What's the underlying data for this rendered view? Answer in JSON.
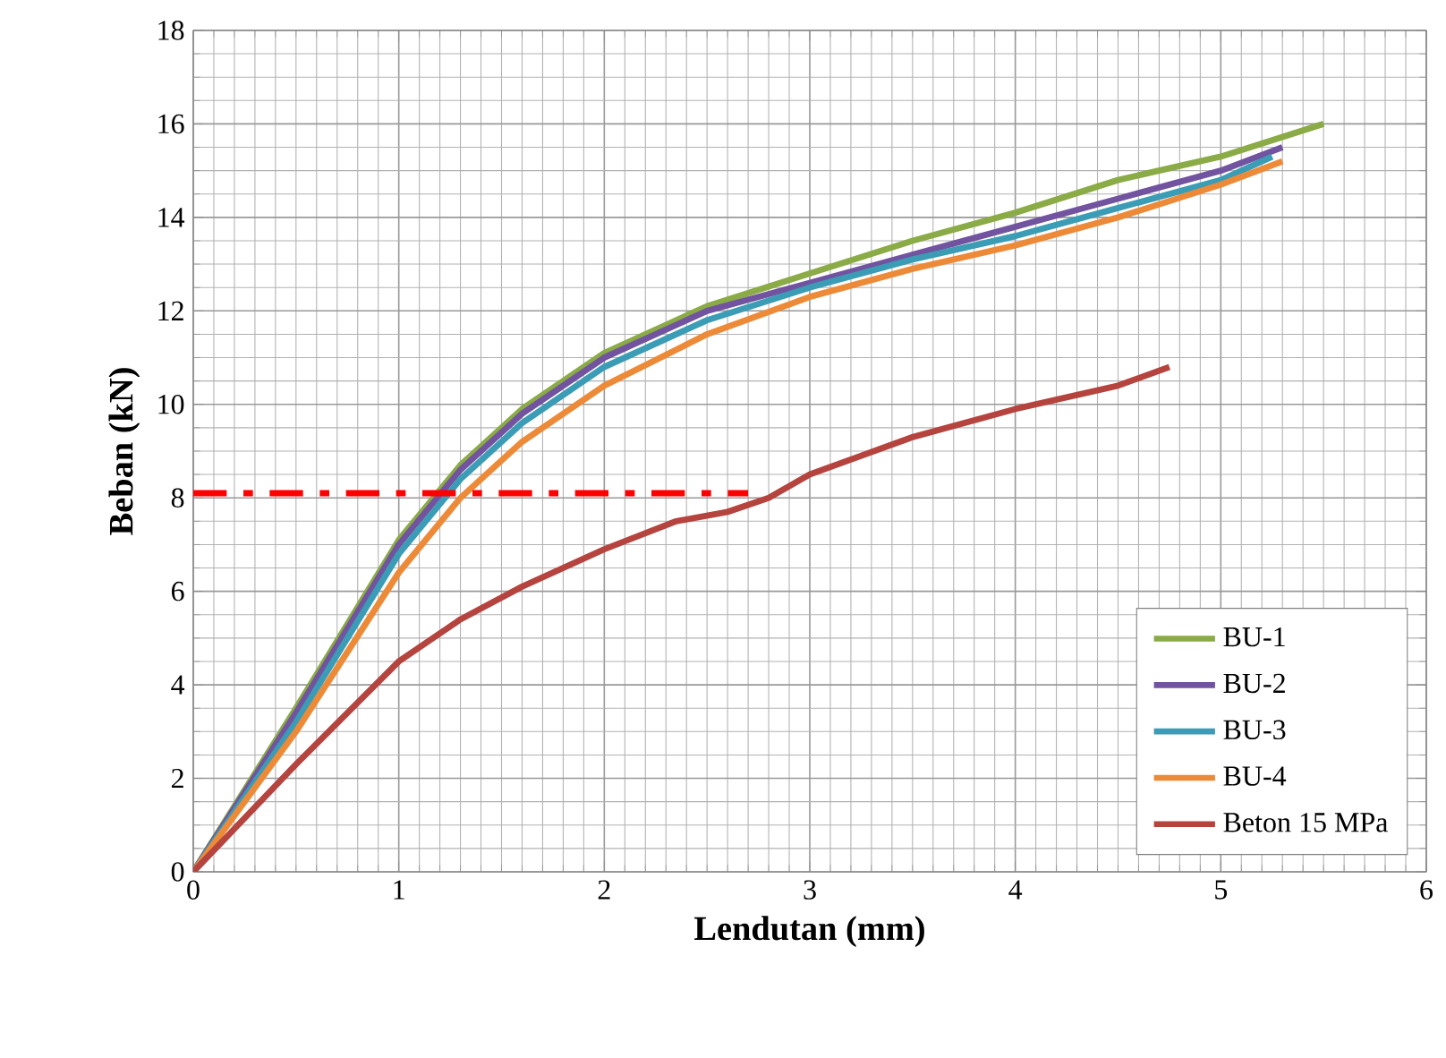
{
  "chart_data": {
    "type": "line",
    "xlabel": "Lendutan (mm)",
    "ylabel": "Beban (kN)",
    "xlim": [
      0,
      6
    ],
    "ylim": [
      0,
      18
    ],
    "xticks": [
      0,
      1,
      2,
      3,
      4,
      5,
      6
    ],
    "yticks": [
      0,
      2,
      4,
      6,
      8,
      10,
      12,
      14,
      16,
      18
    ],
    "grid": true,
    "legend": "bottom right",
    "marker": "none",
    "line_style": "solid",
    "series": [
      {
        "name": "BU-1",
        "color": "#8aab45",
        "x": [
          0,
          0.5,
          1,
          1.3,
          1.6,
          2,
          2.5,
          3,
          3.5,
          4,
          4.5,
          5,
          5.5
        ],
        "values": [
          0,
          3.5,
          7.1,
          8.7,
          9.9,
          11.1,
          12.1,
          12.8,
          13.5,
          14.1,
          14.8,
          15.3,
          16.0
        ]
      },
      {
        "name": "BU-2",
        "color": "#7153a0",
        "x": [
          0,
          0.5,
          1,
          1.3,
          1.6,
          2,
          2.5,
          3,
          3.5,
          4,
          4.5,
          5,
          5.3
        ],
        "values": [
          0,
          3.4,
          7.0,
          8.6,
          9.8,
          11.0,
          12.0,
          12.6,
          13.2,
          13.8,
          14.4,
          15.0,
          15.5
        ]
      },
      {
        "name": "BU-3",
        "color": "#3b9cb5",
        "x": [
          0,
          0.5,
          1,
          1.3,
          1.6,
          2,
          2.5,
          3,
          3.5,
          4,
          4.5,
          5,
          5.25
        ],
        "values": [
          0,
          3.2,
          6.8,
          8.4,
          9.6,
          10.8,
          11.8,
          12.5,
          13.1,
          13.6,
          14.2,
          14.8,
          15.3
        ]
      },
      {
        "name": "BU-4",
        "color": "#ed8a38",
        "x": [
          0,
          0.5,
          1,
          1.3,
          1.6,
          2,
          2.5,
          3,
          3.5,
          4,
          4.5,
          5,
          5.3
        ],
        "values": [
          0,
          3.0,
          6.4,
          8.0,
          9.2,
          10.4,
          11.5,
          12.3,
          12.9,
          13.4,
          14.0,
          14.7,
          15.2
        ]
      },
      {
        "name": "Beton 15 MPa",
        "color": "#b5443f",
        "x": [
          0,
          0.5,
          1,
          1.3,
          1.6,
          2,
          2.35,
          2.6,
          2.8,
          3,
          3.5,
          4,
          4.5,
          4.75
        ],
        "values": [
          0,
          2.3,
          4.5,
          5.4,
          6.1,
          6.9,
          7.5,
          7.7,
          8.0,
          8.5,
          9.3,
          9.9,
          10.4,
          10.8
        ]
      },
      {
        "color": "#ff0000",
        "line_style": "dashed",
        "x": [
          0,
          2.7
        ],
        "values": [
          8.1,
          8.1
        ]
      }
    ]
  }
}
